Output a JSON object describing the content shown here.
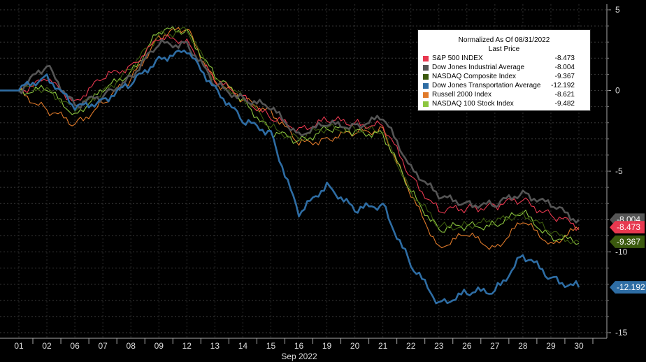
{
  "chart_data": {
    "type": "line",
    "title": "Normalized As Of 08/31/2022",
    "subtitle": "Last Price",
    "xlabel": "Sep 2022",
    "ylim": [
      -15,
      5
    ],
    "y_ticks": [
      "5",
      "0",
      "-5",
      "-10",
      "-15"
    ],
    "y_tick_values": [
      5,
      0,
      -5,
      -10,
      -15
    ],
    "categories": [
      "01",
      "02",
      "06",
      "07",
      "08",
      "09",
      "12",
      "13",
      "14",
      "15",
      "16",
      "19",
      "20",
      "21",
      "22",
      "23",
      "26",
      "27",
      "28",
      "29",
      "30"
    ],
    "grid": true,
    "legend_position": "top-right",
    "series": [
      {
        "name": "S&P 500 INDEX",
        "color": "#e8384f",
        "last": "-8.473",
        "values": [
          0,
          0.6,
          -0.6,
          0.7,
          1.6,
          3.1,
          3.2,
          0.5,
          -0.3,
          -1.8,
          -2.3,
          -1.9,
          -2.0,
          -2.2,
          -5.3,
          -7.5,
          -7.3,
          -7.1,
          -6.8,
          -7.7,
          -8.473
        ]
      },
      {
        "name": "Dow Jones Industrial Average",
        "color": "#555555",
        "last": "-8.004",
        "values": [
          0,
          1.5,
          -0.9,
          -0.4,
          0.9,
          2.8,
          3.0,
          0.3,
          -0.4,
          -1.2,
          -2.6,
          -2.2,
          -2.1,
          -1.8,
          -4.6,
          -6.7,
          -6.9,
          -7.2,
          -6.2,
          -7.2,
          -8.004
        ]
      },
      {
        "name": "NASDAQ Composite Index",
        "color": "#3b5a0e",
        "last": "-9.367",
        "values": [
          0,
          0.2,
          -1.3,
          0.0,
          1.3,
          3.5,
          3.7,
          0.7,
          -0.4,
          -2.3,
          -3.0,
          -2.3,
          -2.4,
          -2.6,
          -6.2,
          -8.5,
          -8.3,
          -8.2,
          -7.5,
          -8.9,
          -9.367
        ]
      },
      {
        "name": "Dow Jones Transportation Average",
        "color": "#2e6da4",
        "last": "-12.192",
        "values": [
          0,
          1.0,
          -1.2,
          -0.5,
          0.3,
          2.1,
          2.3,
          0.3,
          -2.0,
          -2.5,
          -7.8,
          -5.7,
          -7.5,
          -7.0,
          -10.9,
          -13.1,
          -12.6,
          -12.4,
          -10.2,
          -11.6,
          -12.192
        ]
      },
      {
        "name": "Russell 2000 Index",
        "color": "#e07a2a",
        "last": "-8.621",
        "values": [
          0,
          -1.2,
          -2.1,
          -0.8,
          0.7,
          3.4,
          3.8,
          0.6,
          -0.6,
          -1.2,
          -3.4,
          -2.9,
          -2.7,
          -2.3,
          -6.6,
          -9.6,
          -9.0,
          -9.7,
          -8.2,
          -9.4,
          -8.621
        ]
      },
      {
        "name": "NASDAQ 100 Stock Index",
        "color": "#8cc63f",
        "last": "-9.482",
        "values": [
          0,
          0.0,
          -1.4,
          -0.1,
          1.2,
          3.6,
          3.8,
          0.8,
          -0.5,
          -2.6,
          -3.1,
          -2.4,
          -2.5,
          -2.7,
          -6.3,
          -8.6,
          -8.4,
          -8.3,
          -7.6,
          -9.0,
          -9.482
        ]
      }
    ],
    "price_tags": [
      {
        "label": "-8.004",
        "value": -8.004,
        "color": "#555555"
      },
      {
        "label": "-8.473",
        "value": -8.473,
        "color": "#e8384f"
      },
      {
        "label": "-9.367",
        "value": -9.367,
        "color": "#3b5a0e"
      },
      {
        "label": "-12.192",
        "value": -12.192,
        "color": "#2e6da4"
      }
    ]
  }
}
